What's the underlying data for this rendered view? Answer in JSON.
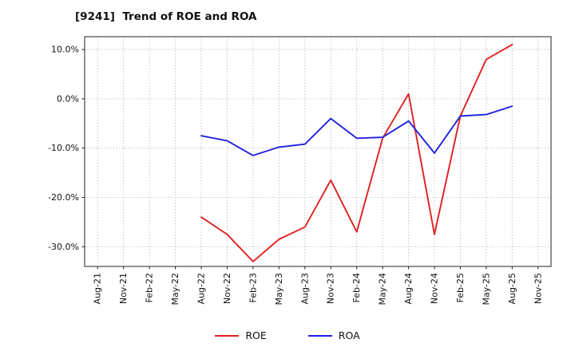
{
  "chart_data": {
    "type": "line",
    "title": "[9241]  Trend of ROE and ROA",
    "categories": [
      "Aug-21",
      "Nov-21",
      "Feb-22",
      "May-22",
      "Aug-22",
      "Nov-22",
      "Feb-23",
      "May-23",
      "Aug-23",
      "Nov-23",
      "Feb-24",
      "May-24",
      "Aug-24",
      "Nov-24",
      "Feb-25",
      "May-25",
      "Aug-25",
      "Nov-25"
    ],
    "series": [
      {
        "name": "ROE",
        "color": "#e02020",
        "values": [
          null,
          null,
          null,
          null,
          -24,
          -27.5,
          -33,
          -28.5,
          -26,
          -16.5,
          -27,
          -8,
          1,
          -27.5,
          -3.5,
          8,
          11,
          null
        ]
      },
      {
        "name": "ROA",
        "color": "#2020dd",
        "values": [
          null,
          null,
          null,
          null,
          -7.5,
          -8.5,
          -11.5,
          -9.8,
          -9.2,
          -4,
          -8,
          -7.8,
          -4.5,
          -11,
          -3.5,
          -3.2,
          -1.5,
          null
        ]
      }
    ],
    "y_ticks": [
      10,
      0,
      -10,
      -20,
      -30
    ],
    "y_tick_labels": [
      "10.0%",
      "0.0%",
      "-10.0%",
      "-20.0%",
      "-30.0%"
    ],
    "ylim": [
      -34,
      12.6
    ],
    "grid": true,
    "legend_position": "bottom"
  }
}
